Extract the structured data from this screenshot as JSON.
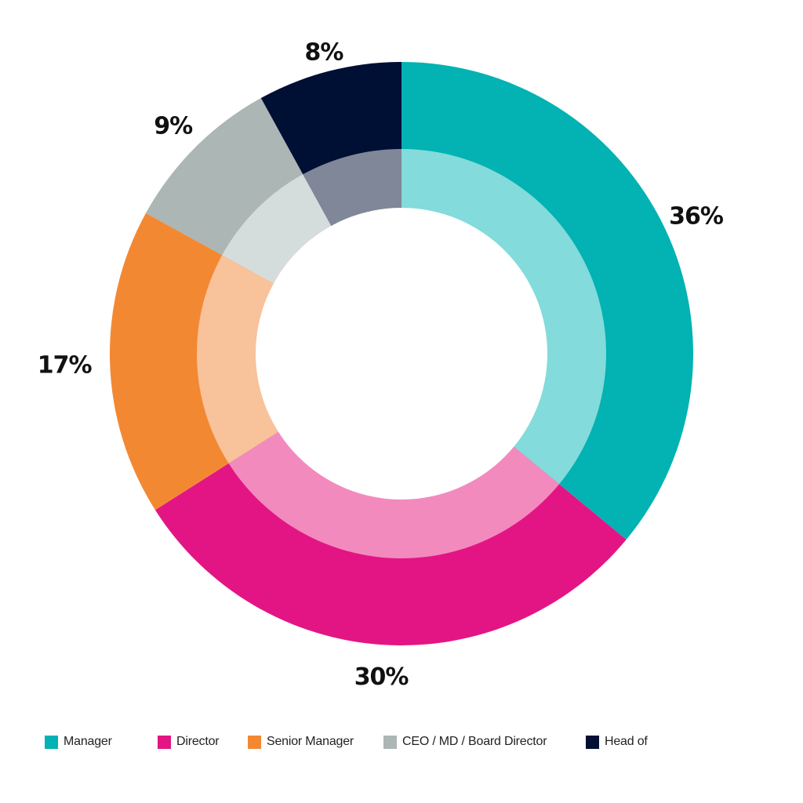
{
  "chart_data": {
    "type": "pie",
    "style": "double-ring donut",
    "categories": [
      "Manager",
      "Director",
      "Senior Manager",
      "CEO / MD / Board Director",
      "Head of"
    ],
    "values": [
      36,
      30,
      17,
      9,
      8
    ],
    "data_labels": [
      "36%",
      "30%",
      "17%",
      "9%",
      "8%"
    ],
    "colors": [
      "#03b2b3",
      "#e31584",
      "#f38832",
      "#abb6b5",
      "#000f34"
    ],
    "inner_ring_colors": [
      "#83dbdb",
      "#f38abe",
      "#f8c29b",
      "#d5dddc",
      "#7f8799"
    ],
    "start": "12 o'clock",
    "direction": "clockwise",
    "legend": "bottom",
    "title": ""
  }
}
